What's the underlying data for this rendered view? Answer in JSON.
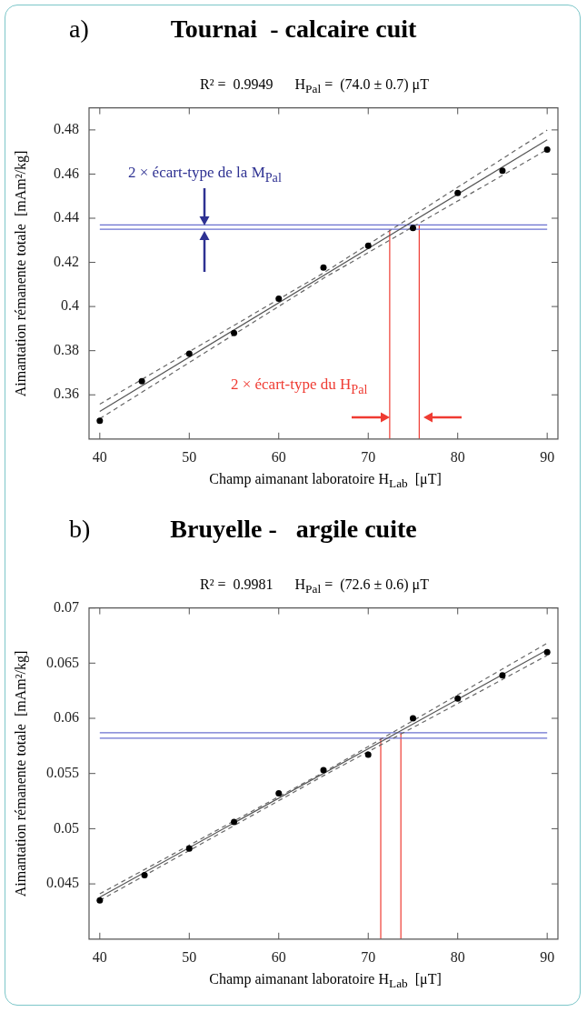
{
  "chart_data": [
    {
      "type": "scatter",
      "title": "Tournai  - calcaire cuit",
      "subtitle": "R² =  0.9949      H$_{Pal}$ =  (74.0 ± 0.7) μT",
      "xlabel": "Champ aimanant laboratoire H$_{Lab}$  [μT]",
      "ylabel": "Aimantation rémanente totale  [mAm²/kg]",
      "xlim": [
        38.8,
        91.2
      ],
      "ylim": [
        0.34,
        0.49
      ],
      "xticks": [
        40,
        50,
        60,
        70,
        80,
        90
      ],
      "yticks": [
        0.36,
        0.38,
        0.4,
        0.42,
        0.44,
        0.46,
        0.48
      ],
      "annotations": [
        "a)",
        "2 × écart-type de la M$_{Pal}$",
        "2 × écart-type du H$_{Pal}$"
      ],
      "series": [
        {
          "type": "line",
          "x": [
            40,
            90
          ],
          "values": [
            0.3525,
            0.4755
          ],
          "color": "#555555",
          "line_style": "solid",
          "marker": "none"
        },
        {
          "type": "line",
          "x": [
            40,
            65,
            90
          ],
          "values": [
            0.3558,
            0.4152,
            0.4799
          ],
          "color": "#666666",
          "line_style": "dashed",
          "marker": "none"
        },
        {
          "type": "line",
          "x": [
            40,
            65,
            90
          ],
          "values": [
            0.3492,
            0.4128,
            0.4711
          ],
          "color": "#666666",
          "line_style": "dashed",
          "marker": "none"
        },
        {
          "type": "line",
          "x": [
            40,
            90
          ],
          "values": [
            0.437,
            0.437
          ],
          "color": "#6a70d0",
          "line_style": "solid",
          "marker": "none"
        },
        {
          "type": "line",
          "x": [
            40,
            90
          ],
          "values": [
            0.435,
            0.435
          ],
          "color": "#6a70d0",
          "line_style": "solid",
          "marker": "none"
        },
        {
          "type": "line",
          "x": [
            72.4,
            72.4
          ],
          "values": [
            0.34,
            0.435
          ],
          "color": "#ef3b32",
          "line_style": "solid",
          "marker": "none"
        },
        {
          "type": "line",
          "x": [
            75.7,
            75.7
          ],
          "values": [
            0.34,
            0.437
          ],
          "color": "#ef3b32",
          "line_style": "solid",
          "marker": "none"
        },
        {
          "type": "scatter",
          "x": [
            40,
            44.7,
            50,
            55,
            60,
            65,
            70,
            75,
            80,
            85,
            90
          ],
          "values": [
            0.3483,
            0.3662,
            0.3786,
            0.388,
            0.4036,
            0.4177,
            0.4275,
            0.4356,
            0.4514,
            0.4615,
            0.4711
          ],
          "color": "#000000",
          "marker": "circle"
        }
      ]
    },
    {
      "type": "scatter",
      "title": "Bruyelle -   argile cuite",
      "subtitle": "R² =  0.9981      H$_{Pal}$ =  (72.6 ± 0.6) μT",
      "xlabel": "Champ aimanant laboratoire H$_{Lab}$  [μT]",
      "ylabel": "Aimantation rémanente totale  [mAm²/kg]",
      "xlim": [
        38.8,
        91.2
      ],
      "ylim": [
        0.04,
        0.07
      ],
      "xticks": [
        40,
        50,
        60,
        70,
        80,
        90
      ],
      "yticks": [
        0.045,
        0.05,
        0.055,
        0.06,
        0.065,
        0.07
      ],
      "annotations": [
        "b)"
      ],
      "series": [
        {
          "type": "line",
          "x": [
            40,
            90
          ],
          "values": [
            0.0438,
            0.0662
          ],
          "color": "#555555",
          "line_style": "solid",
          "marker": "none"
        },
        {
          "type": "line",
          "x": [
            40,
            65,
            90
          ],
          "values": [
            0.0441,
            0.0551,
            0.0668
          ],
          "color": "#666666",
          "line_style": "dashed",
          "marker": "none"
        },
        {
          "type": "line",
          "x": [
            40,
            65,
            90
          ],
          "values": [
            0.0435,
            0.0548,
            0.0657
          ],
          "color": "#666666",
          "line_style": "dashed",
          "marker": "none"
        },
        {
          "type": "line",
          "x": [
            40,
            90
          ],
          "values": [
            0.0587,
            0.0587
          ],
          "color": "#6a70d0",
          "line_style": "solid",
          "marker": "none"
        },
        {
          "type": "line",
          "x": [
            40,
            90
          ],
          "values": [
            0.0582,
            0.0582
          ],
          "color": "#6a70d0",
          "line_style": "solid",
          "marker": "none"
        },
        {
          "type": "line",
          "x": [
            71.4,
            71.4
          ],
          "values": [
            0.04,
            0.0582
          ],
          "color": "#ef3b32",
          "line_style": "solid",
          "marker": "none"
        },
        {
          "type": "line",
          "x": [
            73.65,
            73.65
          ],
          "values": [
            0.04,
            0.0587
          ],
          "color": "#ef3b32",
          "line_style": "solid",
          "marker": "none"
        },
        {
          "type": "scatter",
          "x": [
            40,
            45,
            50,
            55,
            60,
            65,
            70,
            75,
            80,
            85,
            90
          ],
          "values": [
            0.0435,
            0.0458,
            0.0482,
            0.0506,
            0.0532,
            0.0553,
            0.0567,
            0.06,
            0.0618,
            0.0639,
            0.066
          ],
          "color": "#000000",
          "marker": "circle"
        }
      ]
    }
  ]
}
